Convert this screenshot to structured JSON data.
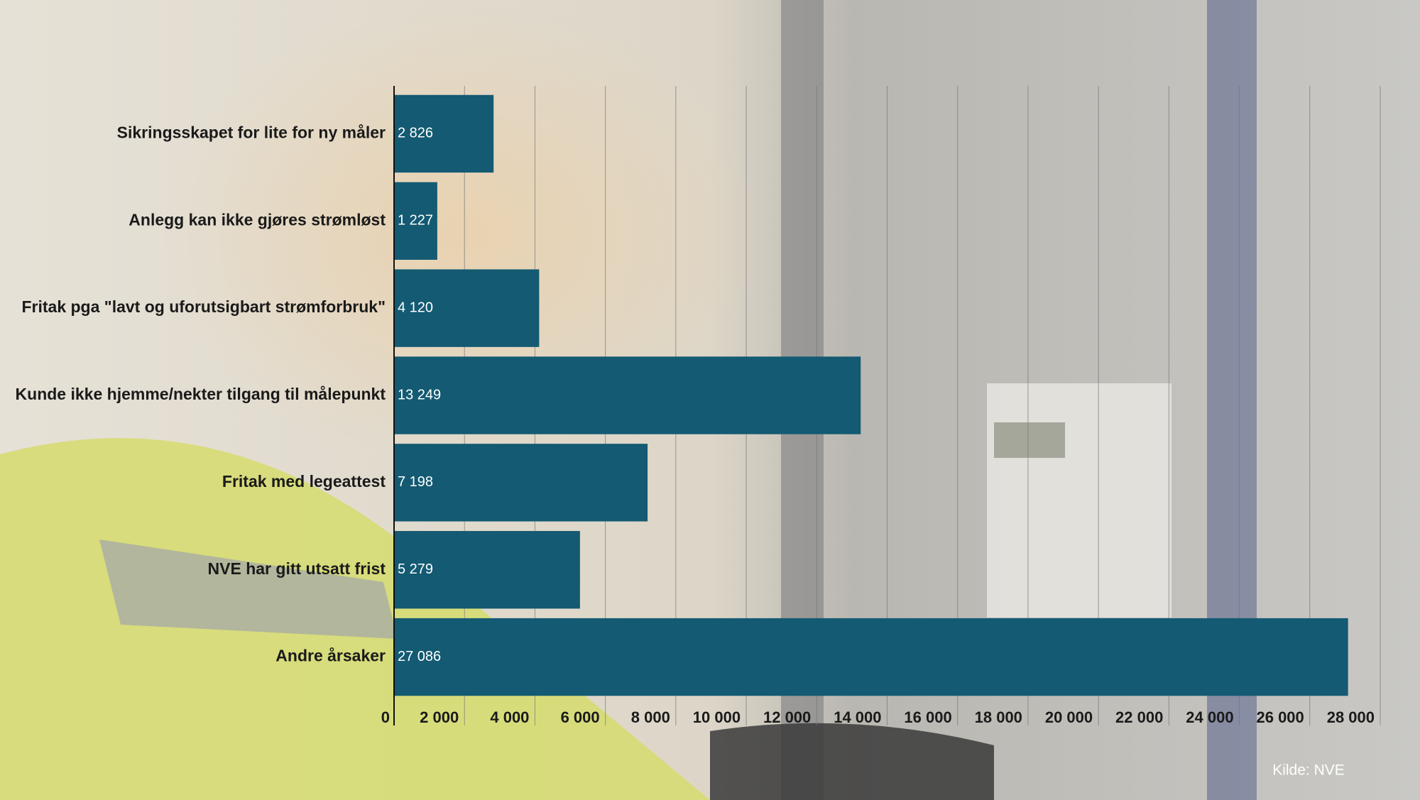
{
  "chart_data": {
    "type": "bar",
    "orientation": "horizontal",
    "categories": [
      "Sikringsskapet for lite for ny måler",
      "Anlegg kan ikke gjøres strømløst",
      "Fritak pga \"lavt og uforutsigbart strømforbruk\"",
      "Kunde ikke hjemme/nekter tilgang til målepunkt",
      "Fritak med legeattest",
      "NVE har gitt utsatt frist",
      "Andre årsaker"
    ],
    "values": [
      2826,
      1227,
      4120,
      13249,
      7198,
      5279,
      27086
    ],
    "value_labels": [
      "2 826",
      "1 227",
      "4 120",
      "13 249",
      "7 198",
      "5 279",
      "27 086"
    ],
    "color": "#135a72",
    "xlim": [
      0,
      28000
    ],
    "xticks": [
      0,
      {
        "value": 2000,
        "label": "2 000"
      },
      {
        "value": 4000,
        "label": "4 000"
      },
      {
        "value": 6000,
        "label": "6 000"
      },
      {
        "value": 8000,
        "label": "8 000"
      },
      {
        "value": 10000,
        "label": "10 000"
      },
      {
        "value": 12000,
        "label": "12 000"
      },
      {
        "value": 14000,
        "label": "14 000"
      },
      {
        "value": 16000,
        "label": "16 000"
      },
      {
        "value": 18000,
        "label": "18 000"
      },
      {
        "value": 20000,
        "label": "20 000"
      },
      {
        "value": 22000,
        "label": "22 000"
      },
      {
        "value": 24000,
        "label": "24 000"
      },
      {
        "value": 26000,
        "label": "26 000"
      },
      {
        "value": 28000,
        "label": "28 000"
      }
    ],
    "grid": true,
    "source": "Kilde: NVE"
  }
}
